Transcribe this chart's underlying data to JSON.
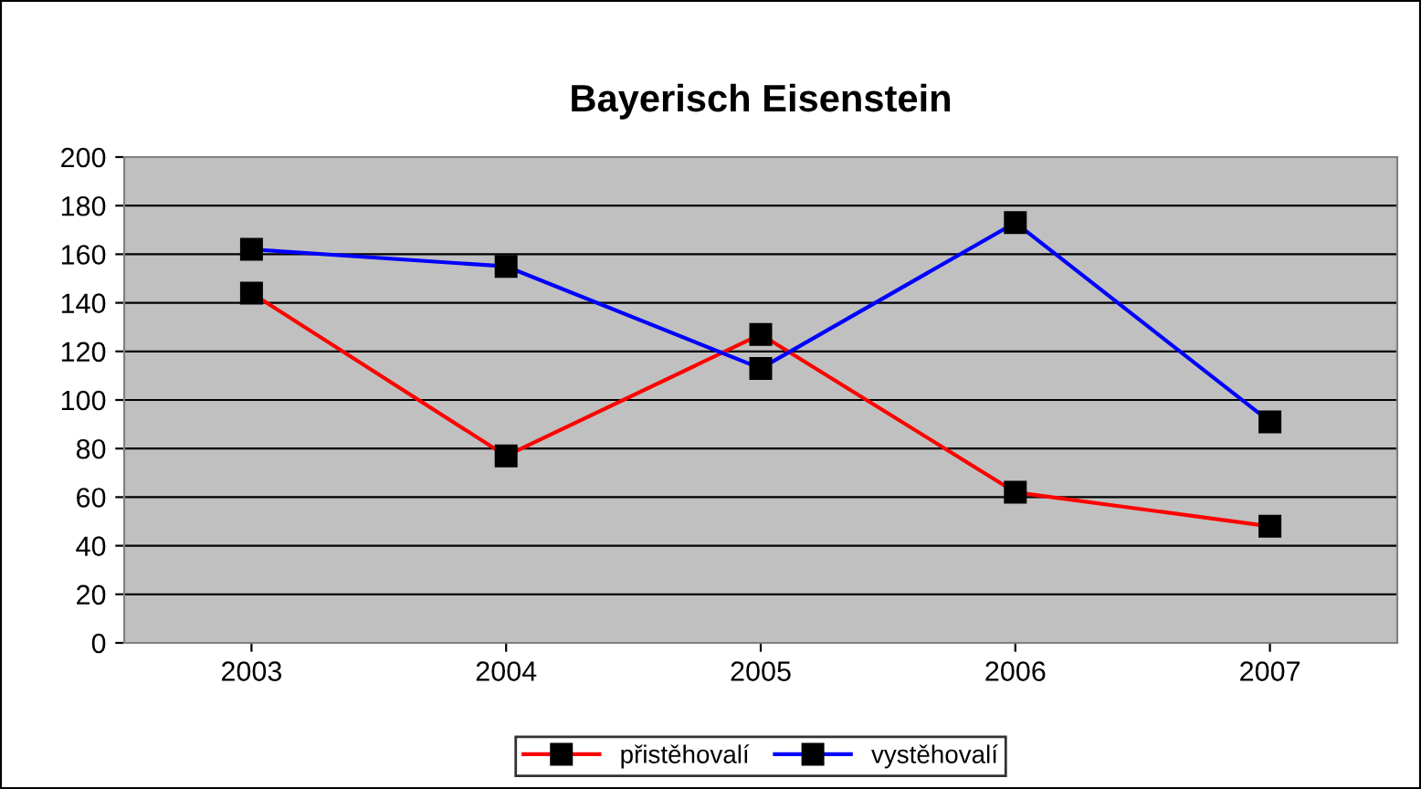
{
  "chart_data": {
    "type": "line",
    "title": "Bayerisch Eisenstein",
    "categories": [
      "2003",
      "2004",
      "2005",
      "2006",
      "2007"
    ],
    "series": [
      {
        "name": "přistěhovalí",
        "color": "#ff0000",
        "values": [
          144,
          77,
          127,
          62,
          48
        ]
      },
      {
        "name": "vystěhovalí",
        "color": "#0000ff",
        "values": [
          162,
          155,
          113,
          173,
          91
        ]
      }
    ],
    "ylim": [
      0,
      200
    ],
    "yticks": [
      0,
      20,
      40,
      60,
      80,
      100,
      120,
      140,
      160,
      180,
      200
    ],
    "grid": "y",
    "legend": "bottom",
    "marker": "square",
    "line_style": "solid"
  }
}
